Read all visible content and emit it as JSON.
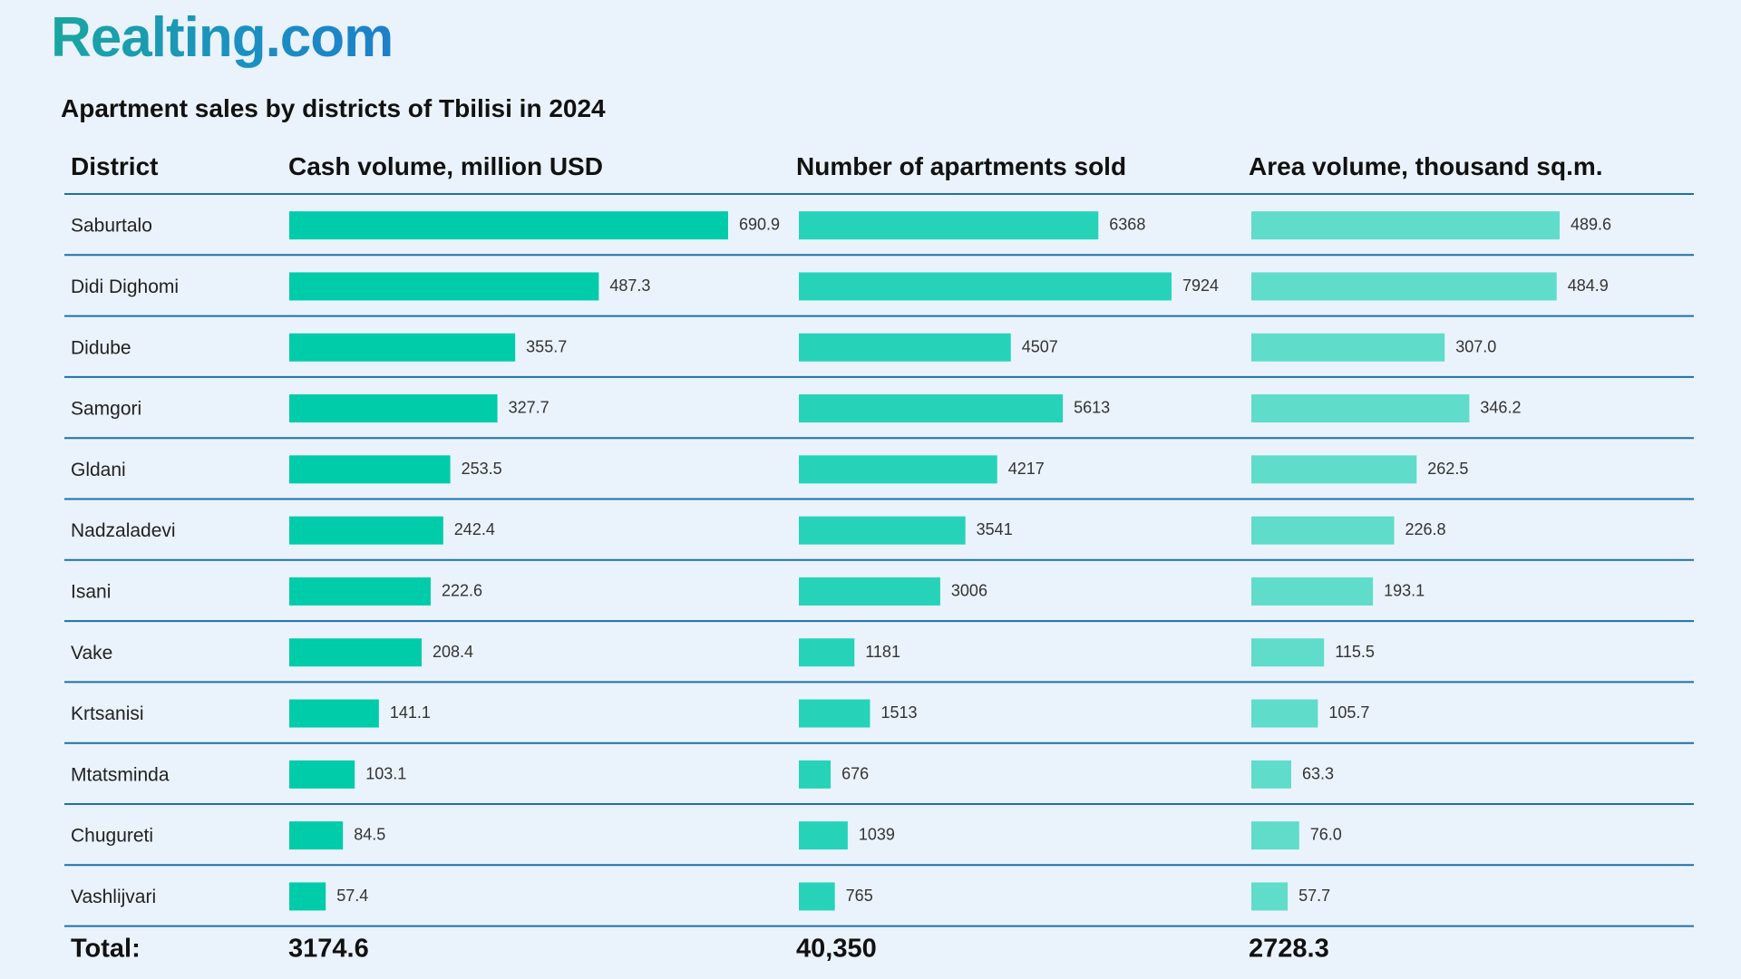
{
  "brand": {
    "logo_text": "Realting.com"
  },
  "chart_data": {
    "type": "bar",
    "title": "Apartment sales by districts of Tbilisi in 2024",
    "district_header": "District",
    "categories": [
      "Saburtalo",
      "Didi Dighomi",
      "Didube",
      "Samgori",
      "Gldani",
      "Nadzaladevi",
      "Isani",
      "Vake",
      "Krtsanisi",
      "Mtatsminda",
      "Chugureti",
      "Vashlijvari"
    ],
    "series": [
      {
        "name": "Cash volume, million USD",
        "values": [
          690.9,
          487.3,
          355.7,
          327.7,
          253.5,
          242.4,
          222.6,
          208.4,
          141.1,
          103.1,
          84.5,
          57.4
        ],
        "labels": [
          "690.9",
          "487.3",
          "355.7",
          "327.7",
          "253.5",
          "242.4",
          "222.6",
          "208.4",
          "141.1",
          "103.1",
          "84.5",
          "57.4"
        ],
        "max": 690.9,
        "total": "3174.6",
        "color": "#00ccaa"
      },
      {
        "name": "Number of apartments sold",
        "values": [
          6368,
          7924,
          4507,
          5613,
          4217,
          3541,
          3006,
          1181,
          1513,
          676,
          1039,
          765
        ],
        "labels": [
          "6368",
          "7924",
          "4507",
          "5613",
          "4217",
          "3541",
          "3006",
          "1181",
          "1513",
          "676",
          "1039",
          "765"
        ],
        "max": 7924,
        "total": "40,350",
        "color": "#26d3b9"
      },
      {
        "name": "Area volume, thousand sq.m.",
        "values": [
          489.6,
          484.9,
          307.0,
          346.2,
          262.5,
          226.8,
          193.1,
          115.5,
          105.7,
          63.3,
          76.0,
          57.7
        ],
        "labels": [
          "489.6",
          "484.9",
          "307.0",
          "346.2",
          "262.5",
          "226.8",
          "193.1",
          "115.5",
          "105.7",
          "63.3",
          "76.0",
          "57.7"
        ],
        "max": 489.6,
        "total": "2728.3",
        "color": "#5fdcca"
      }
    ],
    "total_label": "Total:"
  },
  "colors": {
    "divider": "#1f6fa8",
    "background": "#eaf3fb"
  }
}
